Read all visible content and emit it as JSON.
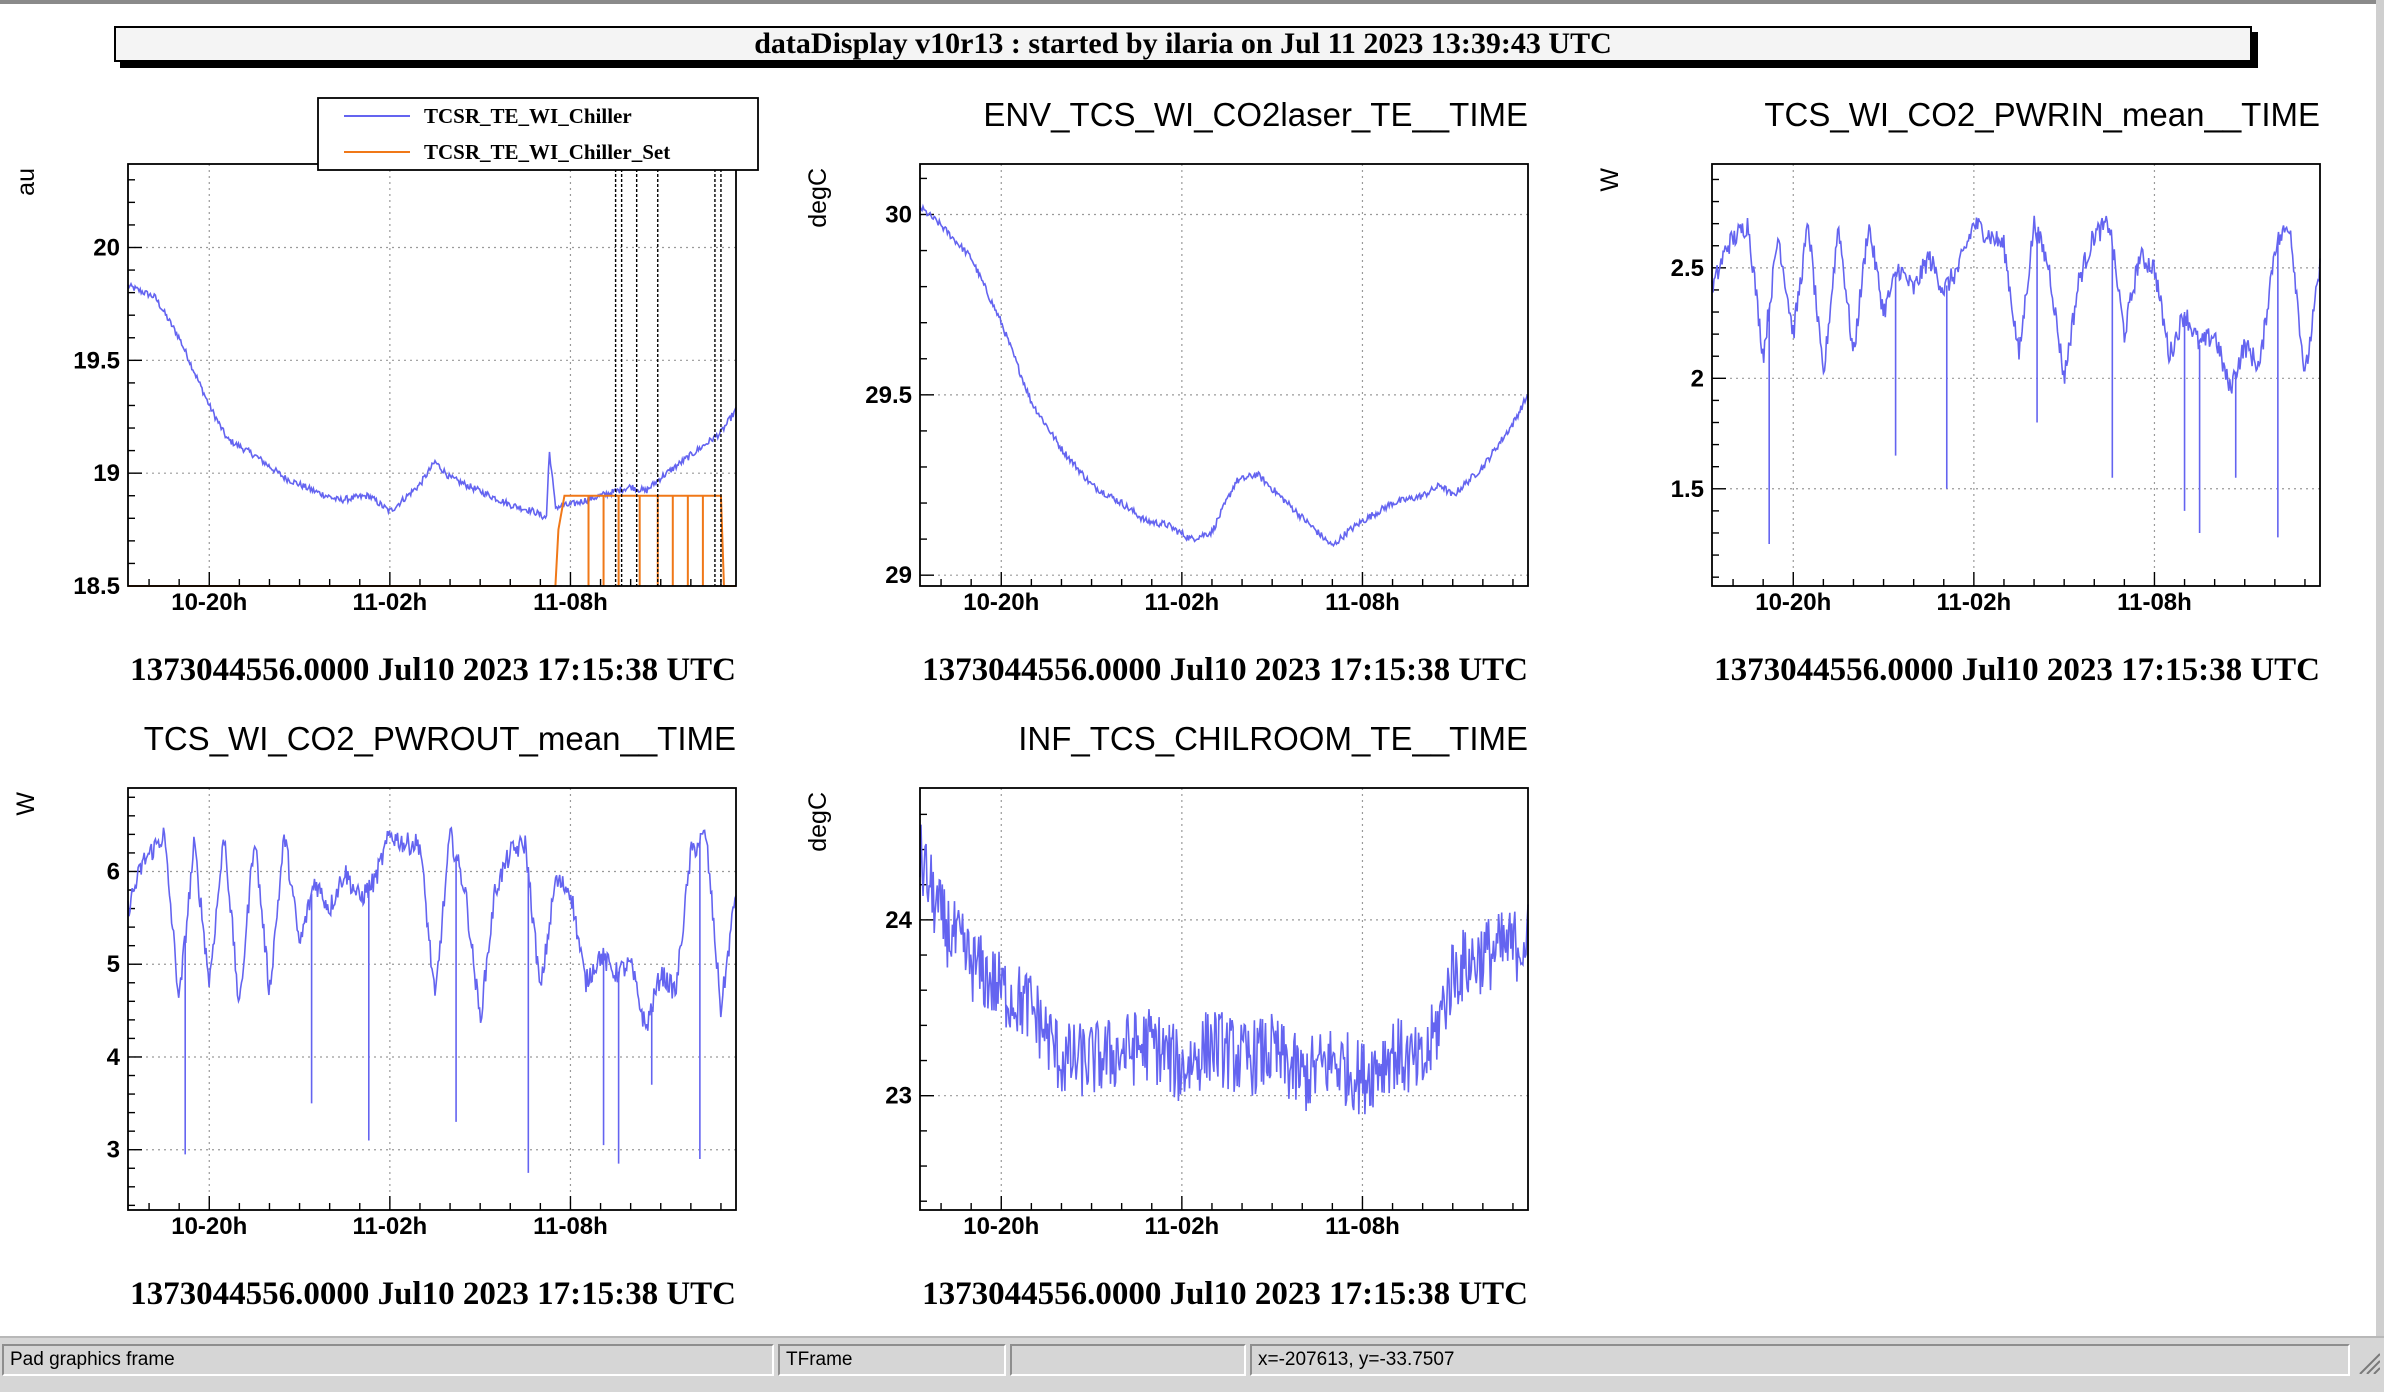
{
  "window": {
    "title": "dataDisplay v10r13 : started by ilaria on Jul 11 2023 13:39:43 UTC"
  },
  "statusbar": {
    "cells": [
      "Pad graphics frame",
      "TFrame",
      "",
      "x=-207613, y=-33.7507"
    ]
  },
  "colors": {
    "series": "#6464f0",
    "setpoint": "#f07818"
  },
  "chart_data": [
    {
      "type": "line",
      "title": "",
      "ylabel": "au",
      "xlabel": "1373044556.0000 Jul10 2023 17:15:38 UTC",
      "xticks": [
        "10-20h",
        "11-02h",
        "11-08h"
      ],
      "xtick_hours": [
        3,
        9,
        15
      ],
      "xlim_hours": [
        0.3,
        20.5
      ],
      "ylim": [
        18.5,
        20.37
      ],
      "yticks": [
        18.5,
        19,
        19.5,
        20
      ],
      "ytick_labels": [
        "18.5",
        "19",
        "19.5",
        "20"
      ],
      "legend": [
        "TCSR_TE_WI_Chiller",
        "TCSR_TE_WI_Chiller_Set"
      ],
      "legend_position": "top",
      "grid": true,
      "series": [
        {
          "name": "TCSR_TE_WI_Chiller",
          "x": [
            0.3,
            1.2,
            2.0,
            3.0,
            3.6,
            4.5,
            5.5,
            6.5,
            7.3,
            8.3,
            9.0,
            10.0,
            10.5,
            11.0,
            12.0,
            13.0,
            13.8,
            14.2,
            14.3,
            14.5,
            15.0,
            16.0,
            17.0,
            17.5,
            18.0,
            19.0,
            20.0,
            20.5
          ],
          "y": [
            19.83,
            19.78,
            19.6,
            19.3,
            19.15,
            19.08,
            18.98,
            18.92,
            18.88,
            18.9,
            18.83,
            18.95,
            19.05,
            18.98,
            18.92,
            18.86,
            18.83,
            18.8,
            19.1,
            18.85,
            18.86,
            18.9,
            18.94,
            18.92,
            18.98,
            19.08,
            19.18,
            19.28
          ],
          "noise": 0.015
        },
        {
          "name": "TCSR_TE_WI_Chiller_Set",
          "x": [
            0.3,
            14.5,
            14.6,
            14.8,
            20.0,
            20.1,
            20.5
          ],
          "y": [
            18.5,
            18.5,
            18.75,
            18.9,
            18.9,
            18.5,
            18.5
          ],
          "pulses_x": [
            15.6,
            16.1,
            16.6,
            17.3,
            17.9,
            18.4,
            18.9,
            19.4
          ],
          "pulse_low": 18.5,
          "pulse_high": 18.9
        }
      ],
      "markers_x": [
        16.5,
        16.7,
        17.2,
        17.9,
        19.8,
        20.0
      ],
      "markers_label": "vertical event lines"
    },
    {
      "type": "line",
      "title": "ENV_TCS_WI_CO2laser_TE__TIME",
      "ylabel": "degC",
      "xlabel": "1373044556.0000 Jul10 2023 17:15:38 UTC",
      "xticks": [
        "10-20h",
        "11-02h",
        "11-08h"
      ],
      "xtick_hours": [
        3,
        9,
        15
      ],
      "xlim_hours": [
        0.3,
        20.5
      ],
      "ylim": [
        28.97,
        30.14
      ],
      "yticks": [
        29,
        29.5,
        30
      ],
      "ytick_labels": [
        "29",
        "29.5",
        "30"
      ],
      "grid": true,
      "series": [
        {
          "name": "",
          "x": [
            0.3,
            1.0,
            2.0,
            3.0,
            4.0,
            5.0,
            6.0,
            7.0,
            7.8,
            8.5,
            9.3,
            10.0,
            10.8,
            11.5,
            12.5,
            13.5,
            14.0,
            14.5,
            15.0,
            16.0,
            17.0,
            17.6,
            18.0,
            19.0,
            20.0,
            20.5
          ],
          "y": [
            30.02,
            29.97,
            29.88,
            29.7,
            29.48,
            29.35,
            29.25,
            29.2,
            29.15,
            29.14,
            29.1,
            29.12,
            29.26,
            29.28,
            29.2,
            29.12,
            29.08,
            29.12,
            29.15,
            29.2,
            29.22,
            29.25,
            29.22,
            29.3,
            29.42,
            29.5
          ],
          "noise": 0.01
        }
      ]
    },
    {
      "type": "line",
      "title": "TCS_WI_CO2_PWRIN_mean__TIME",
      "ylabel": "W",
      "xlabel": "1373044556.0000 Jul10 2023 17:15:38 UTC",
      "xticks": [
        "10-20h",
        "11-02h",
        "11-08h"
      ],
      "xtick_hours": [
        3,
        9,
        15
      ],
      "xlim_hours": [
        0.3,
        20.5
      ],
      "ylim": [
        1.06,
        2.97
      ],
      "yticks": [
        1.5,
        2,
        2.5
      ],
      "ytick_labels": [
        "1.5",
        "2",
        "2.5"
      ],
      "grid": true,
      "series": [
        {
          "name": "",
          "x": [
            0.3,
            0.8,
            1.5,
            2.0,
            2.5,
            3.0,
            3.5,
            4.0,
            4.5,
            5.0,
            5.5,
            6.0,
            6.5,
            7.0,
            7.5,
            8.0,
            8.5,
            9.0,
            9.5,
            10.0,
            10.5,
            11.0,
            11.5,
            12.0,
            12.5,
            13.0,
            13.5,
            14.0,
            14.5,
            15.0,
            15.5,
            16.0,
            16.5,
            17.0,
            17.5,
            18.0,
            18.5,
            19.0,
            19.5,
            20.0,
            20.5
          ],
          "y": [
            2.4,
            2.6,
            2.7,
            2.1,
            2.65,
            2.2,
            2.7,
            2.0,
            2.7,
            2.1,
            2.7,
            2.3,
            2.5,
            2.4,
            2.55,
            2.4,
            2.5,
            2.7,
            2.65,
            2.6,
            2.1,
            2.7,
            2.5,
            2.0,
            2.45,
            2.65,
            2.7,
            2.2,
            2.55,
            2.5,
            2.1,
            2.3,
            2.15,
            2.2,
            1.95,
            2.15,
            2.05,
            2.6,
            2.7,
            2.0,
            2.5
          ],
          "noise": 0.05,
          "spikes_x": [
            2.2,
            6.4,
            8.1,
            11.1,
            13.6,
            16.0,
            16.5,
            17.7,
            19.1
          ],
          "spikes_y": [
            1.25,
            1.65,
            1.5,
            1.8,
            1.55,
            1.4,
            1.3,
            1.55,
            1.28
          ]
        }
      ]
    },
    {
      "type": "line",
      "title": "TCS_WI_CO2_PWROUT_mean__TIME",
      "ylabel": "W",
      "xlabel": "1373044556.0000 Jul10 2023 17:15:38 UTC",
      "xticks": [
        "10-20h",
        "11-02h",
        "11-08h"
      ],
      "xtick_hours": [
        3,
        9,
        15
      ],
      "xlim_hours": [
        0.3,
        20.5
      ],
      "ylim": [
        2.35,
        6.9
      ],
      "yticks": [
        3,
        4,
        5,
        6
      ],
      "ytick_labels": [
        "3",
        "4",
        "5",
        "6"
      ],
      "grid": true,
      "series": [
        {
          "name": "",
          "x": [
            0.3,
            0.8,
            1.5,
            2.0,
            2.5,
            3.0,
            3.5,
            4.0,
            4.5,
            5.0,
            5.5,
            6.0,
            6.5,
            7.0,
            7.5,
            8.0,
            8.5,
            9.0,
            9.5,
            10.0,
            10.5,
            11.0,
            11.5,
            12.0,
            12.5,
            13.0,
            13.5,
            14.0,
            14.5,
            15.0,
            15.5,
            16.0,
            16.5,
            17.0,
            17.5,
            18.0,
            18.5,
            19.0,
            19.5,
            20.0,
            20.5
          ],
          "y": [
            5.6,
            6.1,
            6.4,
            4.6,
            6.3,
            4.8,
            6.4,
            4.5,
            6.4,
            4.7,
            6.4,
            5.2,
            5.9,
            5.6,
            6.0,
            5.7,
            5.9,
            6.4,
            6.3,
            6.3,
            4.6,
            6.4,
            5.8,
            4.4,
            5.8,
            6.2,
            6.3,
            4.7,
            5.9,
            5.8,
            4.8,
            5.1,
            4.9,
            5.0,
            4.3,
            4.9,
            4.7,
            6.2,
            6.4,
            4.5,
            5.8
          ],
          "noise": 0.12,
          "spikes_x": [
            2.2,
            6.4,
            8.3,
            11.2,
            13.6,
            16.1,
            16.6,
            17.7,
            19.3
          ],
          "spikes_y": [
            2.95,
            3.5,
            3.1,
            3.3,
            2.75,
            3.05,
            2.85,
            3.7,
            2.9
          ]
        }
      ]
    },
    {
      "type": "line",
      "title": "INF_TCS_CHILROOM_TE__TIME",
      "ylabel": "degC",
      "xlabel": "1373044556.0000 Jul10 2023 17:15:38 UTC",
      "xticks": [
        "10-20h",
        "11-02h",
        "11-08h"
      ],
      "xtick_hours": [
        3,
        9,
        15
      ],
      "xlim_hours": [
        0.3,
        20.5
      ],
      "ylim": [
        22.35,
        24.75
      ],
      "yticks": [
        23,
        24
      ],
      "ytick_labels": [
        "23",
        "24"
      ],
      "grid": true,
      "series": [
        {
          "name": "",
          "x": [
            0.3,
            1.0,
            2.0,
            3.0,
            4.0,
            5.0,
            6.0,
            7.0,
            8.0,
            9.0,
            10.0,
            11.0,
            12.0,
            13.0,
            14.0,
            15.0,
            16.0,
            17.0,
            17.5,
            18.0,
            19.0,
            20.0,
            20.5
          ],
          "y": [
            24.35,
            24.0,
            23.75,
            23.6,
            23.5,
            23.2,
            23.2,
            23.25,
            23.3,
            23.15,
            23.3,
            23.2,
            23.25,
            23.1,
            23.2,
            23.1,
            23.25,
            23.15,
            23.4,
            23.7,
            23.8,
            23.85,
            23.9
          ],
          "noise": 0.22
        }
      ]
    }
  ]
}
